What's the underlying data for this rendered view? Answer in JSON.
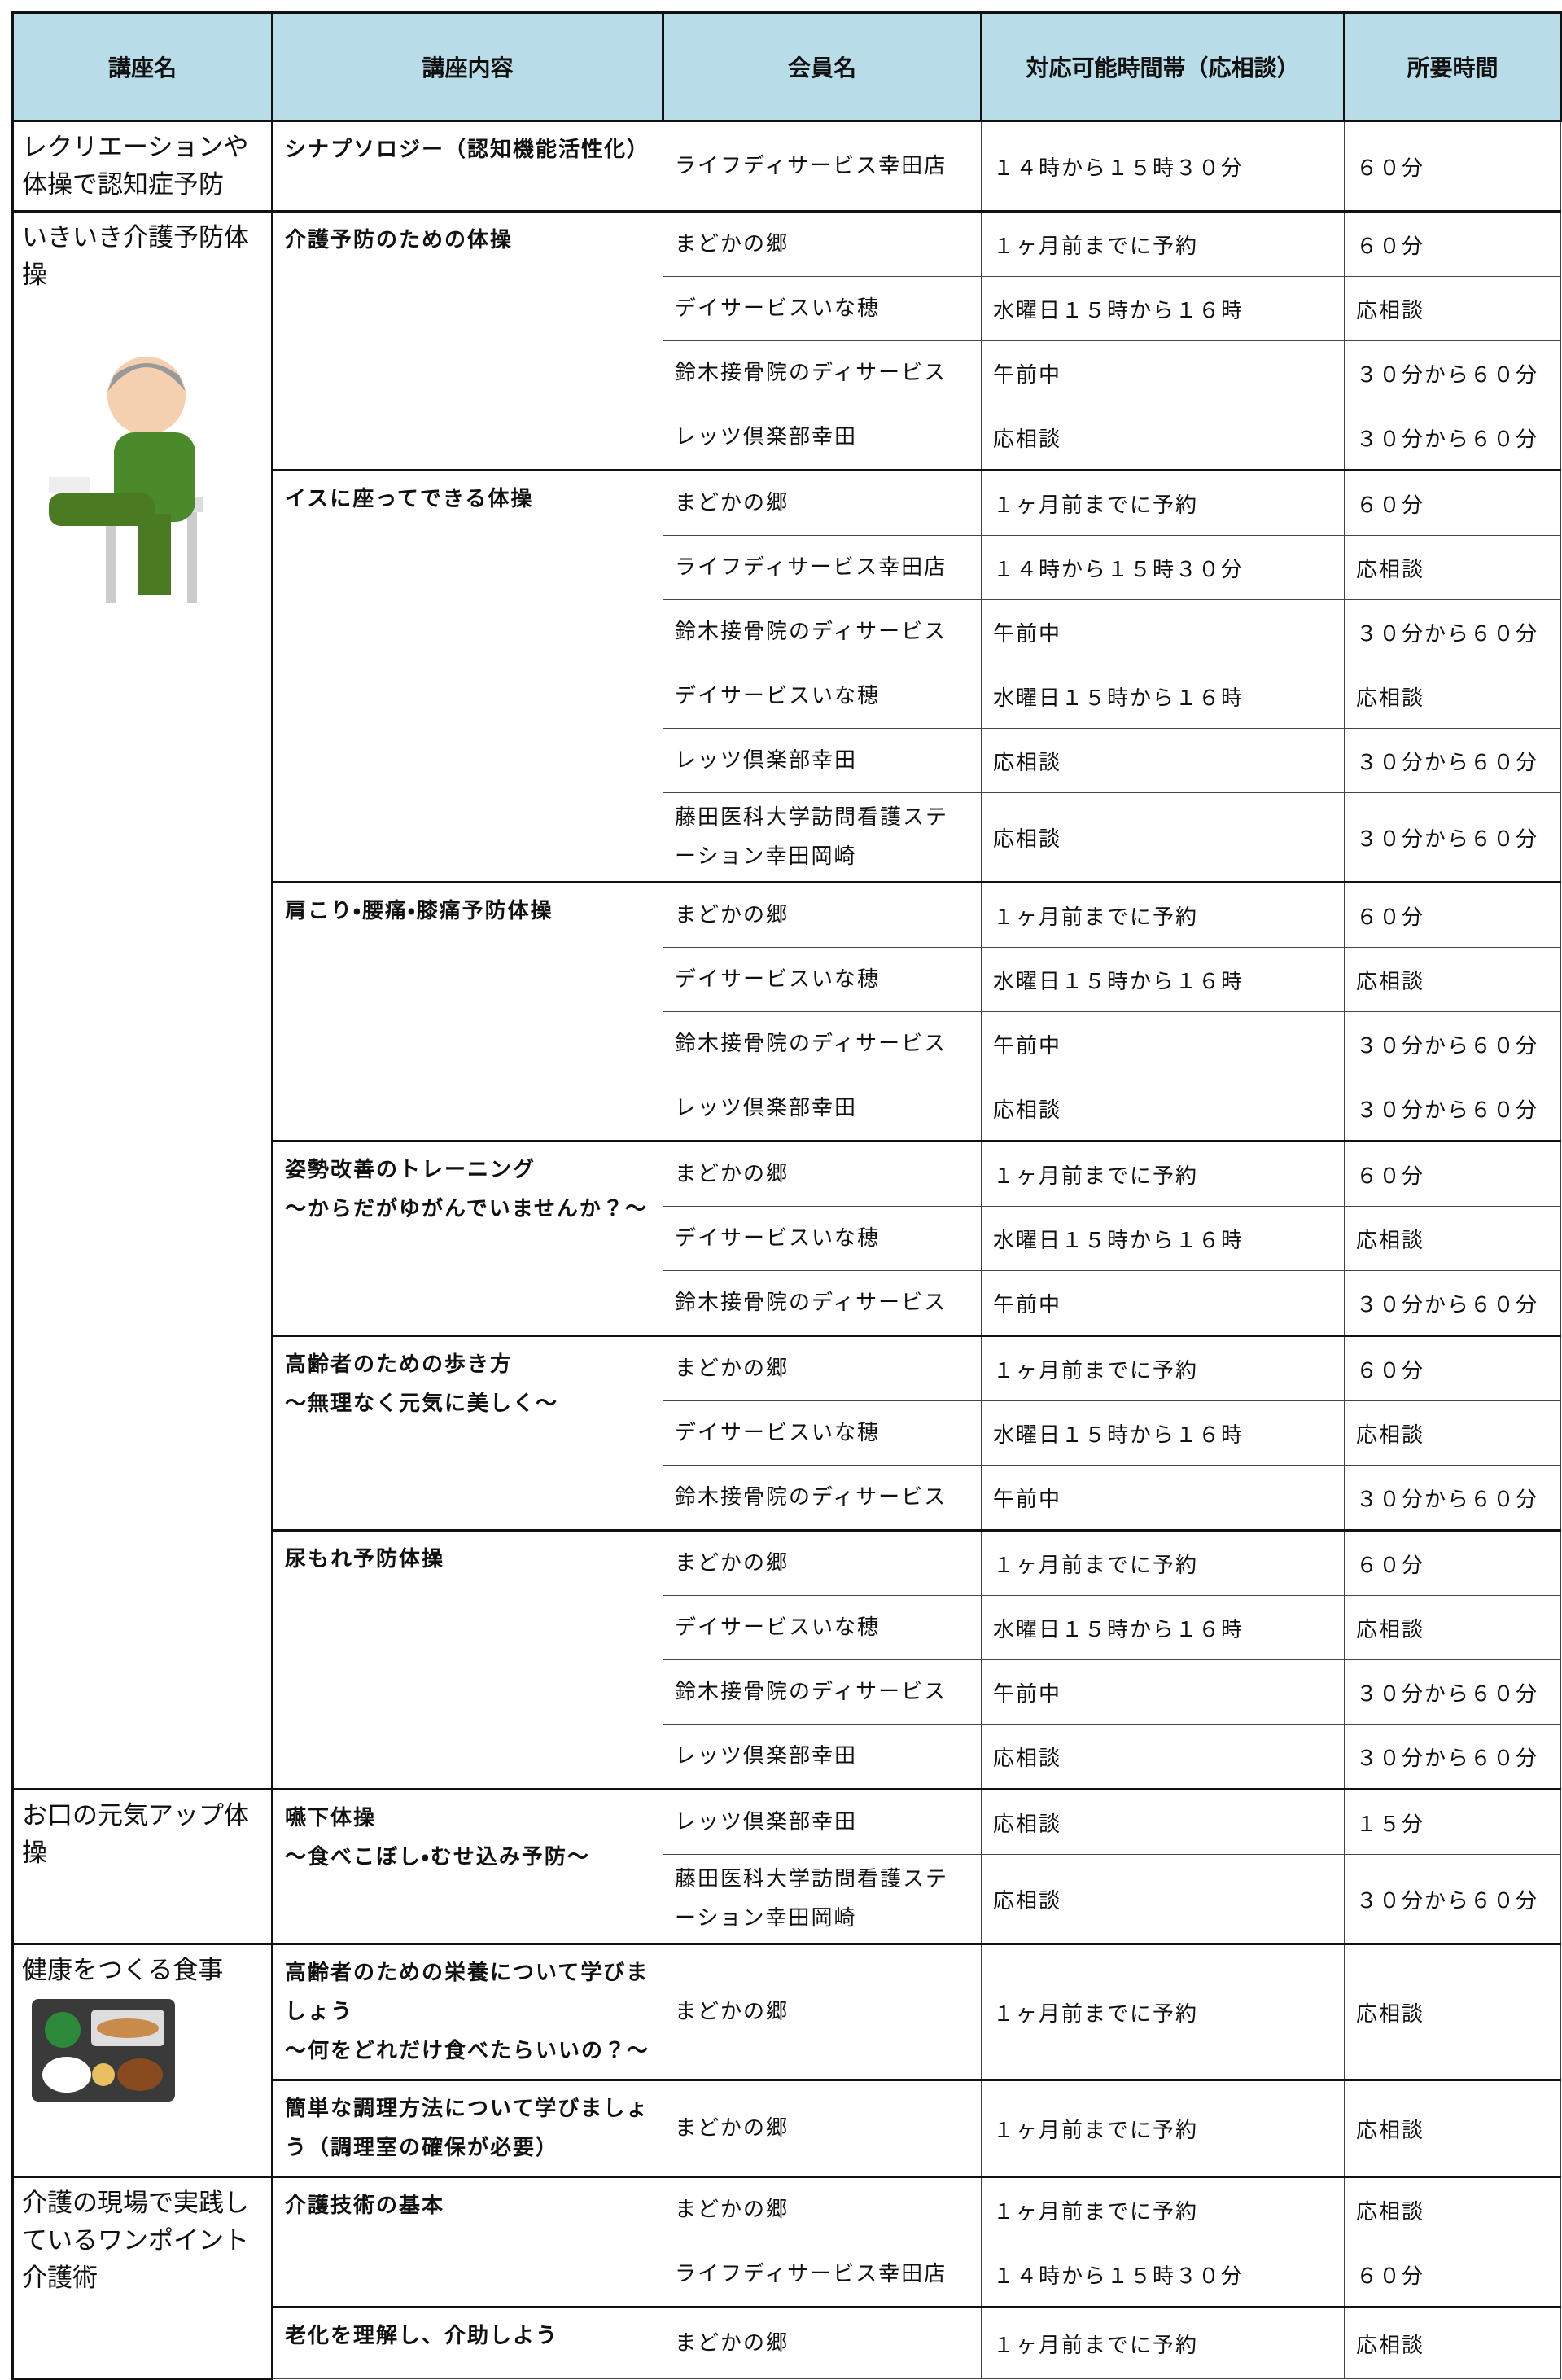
{
  "table": {
    "headers": [
      "講座名",
      "講座内容",
      "会員名",
      "対応可能時間帯（応相談）",
      "所要時間"
    ],
    "groups": [
      {
        "name": "レクリエーションや体操で認知症予防",
        "contents": [
          {
            "title": "シナプソロジー（認知機能活性化）",
            "rows": [
              [
                "ライフディサービス幸田店",
                "１４時から１５時３０分",
                "６０分"
              ]
            ]
          }
        ]
      },
      {
        "name": "いきいき介護予防体操",
        "contents": [
          {
            "title": "介護予防のための体操",
            "rows": [
              [
                "まどかの郷",
                "１ヶ月前までに予約",
                "６０分"
              ],
              [
                "デイサービスいな穂",
                "水曜日１５時から１６時",
                "応相談"
              ],
              [
                "鈴木接骨院のディサービス",
                "午前中",
                "３０分から６０分"
              ],
              [
                "レッツ倶楽部幸田",
                "応相談",
                "３０分から６０分"
              ]
            ]
          },
          {
            "title": "イスに座ってできる体操",
            "rows": [
              [
                "まどかの郷",
                "１ヶ月前までに予約",
                "６０分"
              ],
              [
                "ライフディサービス幸田店",
                "１４時から１５時３０分",
                "応相談"
              ],
              [
                "鈴木接骨院のディサービス",
                "午前中",
                "３０分から６０分"
              ],
              [
                "デイサービスいな穂",
                "水曜日１５時から１６時",
                "応相談"
              ],
              [
                "レッツ倶楽部幸田",
                "応相談",
                "３０分から６０分"
              ],
              [
                "藤田医科大学訪問看護ステーション幸田岡崎",
                "応相談",
                "３０分から６０分"
              ]
            ]
          },
          {
            "title": "肩こり・腰痛・膝痛予防体操",
            "rows": [
              [
                "まどかの郷",
                "１ヶ月前までに予約",
                "６０分"
              ],
              [
                "デイサービスいな穂",
                "水曜日１５時から１６時",
                "応相談"
              ],
              [
                "鈴木接骨院のディサービス",
                "午前中",
                "３０分から６０分"
              ],
              [
                "レッツ倶楽部幸田",
                "応相談",
                "３０分から６０分"
              ]
            ]
          },
          {
            "title": "姿勢改善のトレーニング\n～からだがゆがんでいませんか？～",
            "rows": [
              [
                "まどかの郷",
                "１ヶ月前までに予約",
                "６０分"
              ],
              [
                "デイサービスいな穂",
                "水曜日１５時から１６時",
                "応相談"
              ],
              [
                "鈴木接骨院のディサービス",
                "午前中",
                "３０分から６０分"
              ]
            ]
          },
          {
            "title": "高齢者のための歩き方\n～無理なく元気に美しく～",
            "rows": [
              [
                "まどかの郷",
                "１ヶ月前までに予約",
                "６０分"
              ],
              [
                "デイサービスいな穂",
                "水曜日１５時から１６時",
                "応相談"
              ],
              [
                "鈴木接骨院のディサービス",
                "午前中",
                "３０分から６０分"
              ]
            ]
          },
          {
            "title": "尿もれ予防体操",
            "rows": [
              [
                "まどかの郷",
                "１ヶ月前までに予約",
                "６０分"
              ],
              [
                "デイサービスいな穂",
                "水曜日１５時から１６時",
                "応相談"
              ],
              [
                "鈴木接骨院のディサービス",
                "午前中",
                "３０分から６０分"
              ],
              [
                "レッツ倶楽部幸田",
                "応相談",
                "３０分から６０分"
              ]
            ]
          }
        ]
      },
      {
        "name": "お口の元気アップ体操",
        "contents": [
          {
            "title": "嚥下体操\n～食べこぼし・むせ込み予防～",
            "rows": [
              [
                "レッツ倶楽部幸田",
                "応相談",
                "１５分"
              ],
              [
                "藤田医科大学訪問看護ステーション幸田岡崎",
                "応相談",
                "３０分から６０分"
              ]
            ]
          }
        ]
      },
      {
        "name": "健康をつくる食事",
        "contents": [
          {
            "title": "高齢者のための栄養について学びましょう\n～何をどれだけ食べたらいいの？～",
            "rows": [
              [
                "まどかの郷",
                "１ヶ月前までに予約",
                "応相談"
              ]
            ]
          },
          {
            "title": "簡単な調理方法について学びましょう（調理室の確保が必要）",
            "rows": [
              [
                "まどかの郷",
                "１ヶ月前までに予約",
                "応相談"
              ]
            ]
          }
        ]
      },
      {
        "name": "介護の現場で実践しているワンポイント介護術",
        "contents": [
          {
            "title": "介護技術の基本",
            "rows": [
              [
                "まどかの郷",
                "１ヶ月前までに予約",
                "応相談"
              ],
              [
                "ライフディサービス幸田店",
                "１４時から１５時３０分",
                "６０分"
              ]
            ]
          },
          {
            "title": "老化を理解し、介助しよう",
            "rows": [
              [
                "まどかの郷",
                "１ヶ月前までに予約",
                "応相談"
              ]
            ]
          }
        ]
      }
    ]
  }
}
